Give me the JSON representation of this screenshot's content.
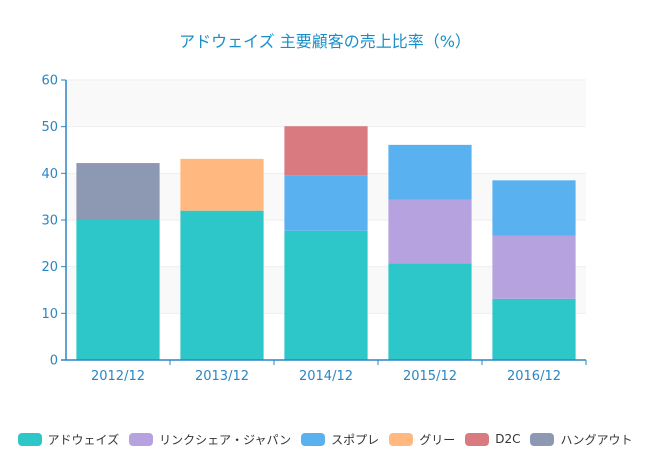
{
  "chart_data": {
    "type": "bar",
    "stacked": true,
    "title": "アドウェイズ 主要顧客の売上比率（%）",
    "xlabel": "",
    "ylabel": "",
    "ylim": [
      0,
      60
    ],
    "yticks": [
      "0",
      "10",
      "20",
      "30",
      "40",
      "50",
      "60"
    ],
    "categories": [
      "2012/12",
      "2013/12",
      "2014/12",
      "2015/12",
      "2016/12"
    ],
    "grid": true,
    "legend_position": "bottom",
    "series": [
      {
        "name": "アドウェイズ",
        "color": "#2ec7c9",
        "values": [
          30.0,
          32.0,
          27.7,
          20.7,
          13.1
        ]
      },
      {
        "name": "リンクシェア・ジャパン",
        "color": "#b6a2de",
        "values": [
          0,
          0,
          0,
          13.7,
          13.5
        ]
      },
      {
        "name": "スポプレ",
        "color": "#5ab1ef",
        "values": [
          0,
          0,
          11.9,
          11.7,
          11.9
        ]
      },
      {
        "name": "グリー",
        "color": "#ffb980",
        "values": [
          0,
          11.1,
          0,
          0,
          0
        ]
      },
      {
        "name": "D2C",
        "color": "#d87a80",
        "values": [
          0,
          0,
          10.5,
          0,
          0
        ]
      },
      {
        "name": "ハングアウト",
        "color": "#8d98b3",
        "values": [
          12.2,
          0,
          0,
          0,
          0
        ]
      }
    ]
  }
}
